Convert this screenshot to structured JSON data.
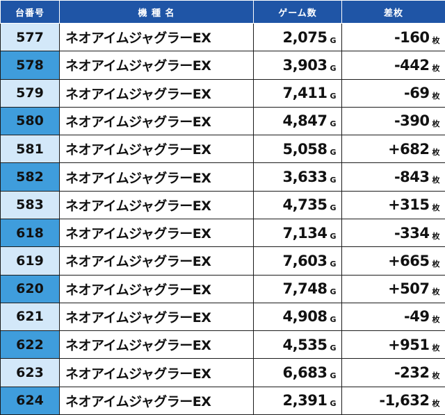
{
  "headers": {
    "machine_no": "台番号",
    "model": "機 種 名",
    "games": "ゲーム数",
    "diff": "差枚"
  },
  "units": {
    "games": "G",
    "diff": "枚"
  },
  "rows": [
    {
      "no": "577",
      "model": "ネオアイムジャグラーEX",
      "games": "2,075",
      "diff": "-160"
    },
    {
      "no": "578",
      "model": "ネオアイムジャグラーEX",
      "games": "3,903",
      "diff": "-442"
    },
    {
      "no": "579",
      "model": "ネオアイムジャグラーEX",
      "games": "7,411",
      "diff": "-69"
    },
    {
      "no": "580",
      "model": "ネオアイムジャグラーEX",
      "games": "4,847",
      "diff": "-390"
    },
    {
      "no": "581",
      "model": "ネオアイムジャグラーEX",
      "games": "5,058",
      "diff": "+682"
    },
    {
      "no": "582",
      "model": "ネオアイムジャグラーEX",
      "games": "3,633",
      "diff": "-843"
    },
    {
      "no": "583",
      "model": "ネオアイムジャグラーEX",
      "games": "4,735",
      "diff": "+315"
    },
    {
      "no": "618",
      "model": "ネオアイムジャグラーEX",
      "games": "7,134",
      "diff": "-334"
    },
    {
      "no": "619",
      "model": "ネオアイムジャグラーEX",
      "games": "7,603",
      "diff": "+665"
    },
    {
      "no": "620",
      "model": "ネオアイムジャグラーEX",
      "games": "7,748",
      "diff": "+507"
    },
    {
      "no": "621",
      "model": "ネオアイムジャグラーEX",
      "games": "4,908",
      "diff": "-49"
    },
    {
      "no": "622",
      "model": "ネオアイムジャグラーEX",
      "games": "4,535",
      "diff": "+951"
    },
    {
      "no": "623",
      "model": "ネオアイムジャグラーEX",
      "games": "6,683",
      "diff": "-232"
    },
    {
      "no": "624",
      "model": "ネオアイムジャグラーEX",
      "games": "2,391",
      "diff": "-1,632"
    }
  ]
}
